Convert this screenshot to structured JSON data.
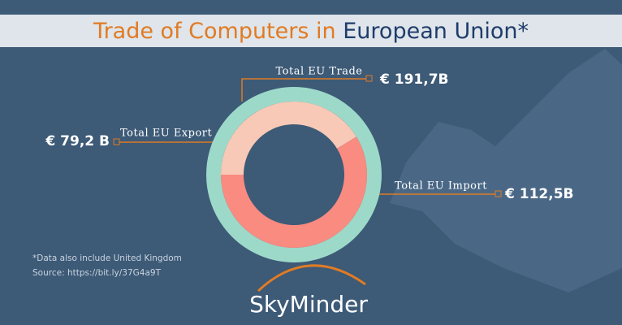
{
  "chart_data": {
    "type": "donut",
    "title": [
      "Trade of Computers in",
      "European Union*"
    ],
    "categories": [
      "Total EU Export",
      "Total EU Import"
    ],
    "values": [
      79.2,
      112.5
    ],
    "value_labels": [
      "€ 79,2 B",
      "€ 112,5B"
    ],
    "colors": [
      "#f8c9b6",
      "#f98b80"
    ],
    "total": {
      "name": "Total EU Trade",
      "value": 191.7,
      "value_label": "€ 191,7B",
      "color": "#9dd9c9"
    },
    "notes": [
      "*Data also include United Kingdom",
      "Source: https://bit.ly/37G4a9T"
    ],
    "brand": "SkyMinder"
  }
}
